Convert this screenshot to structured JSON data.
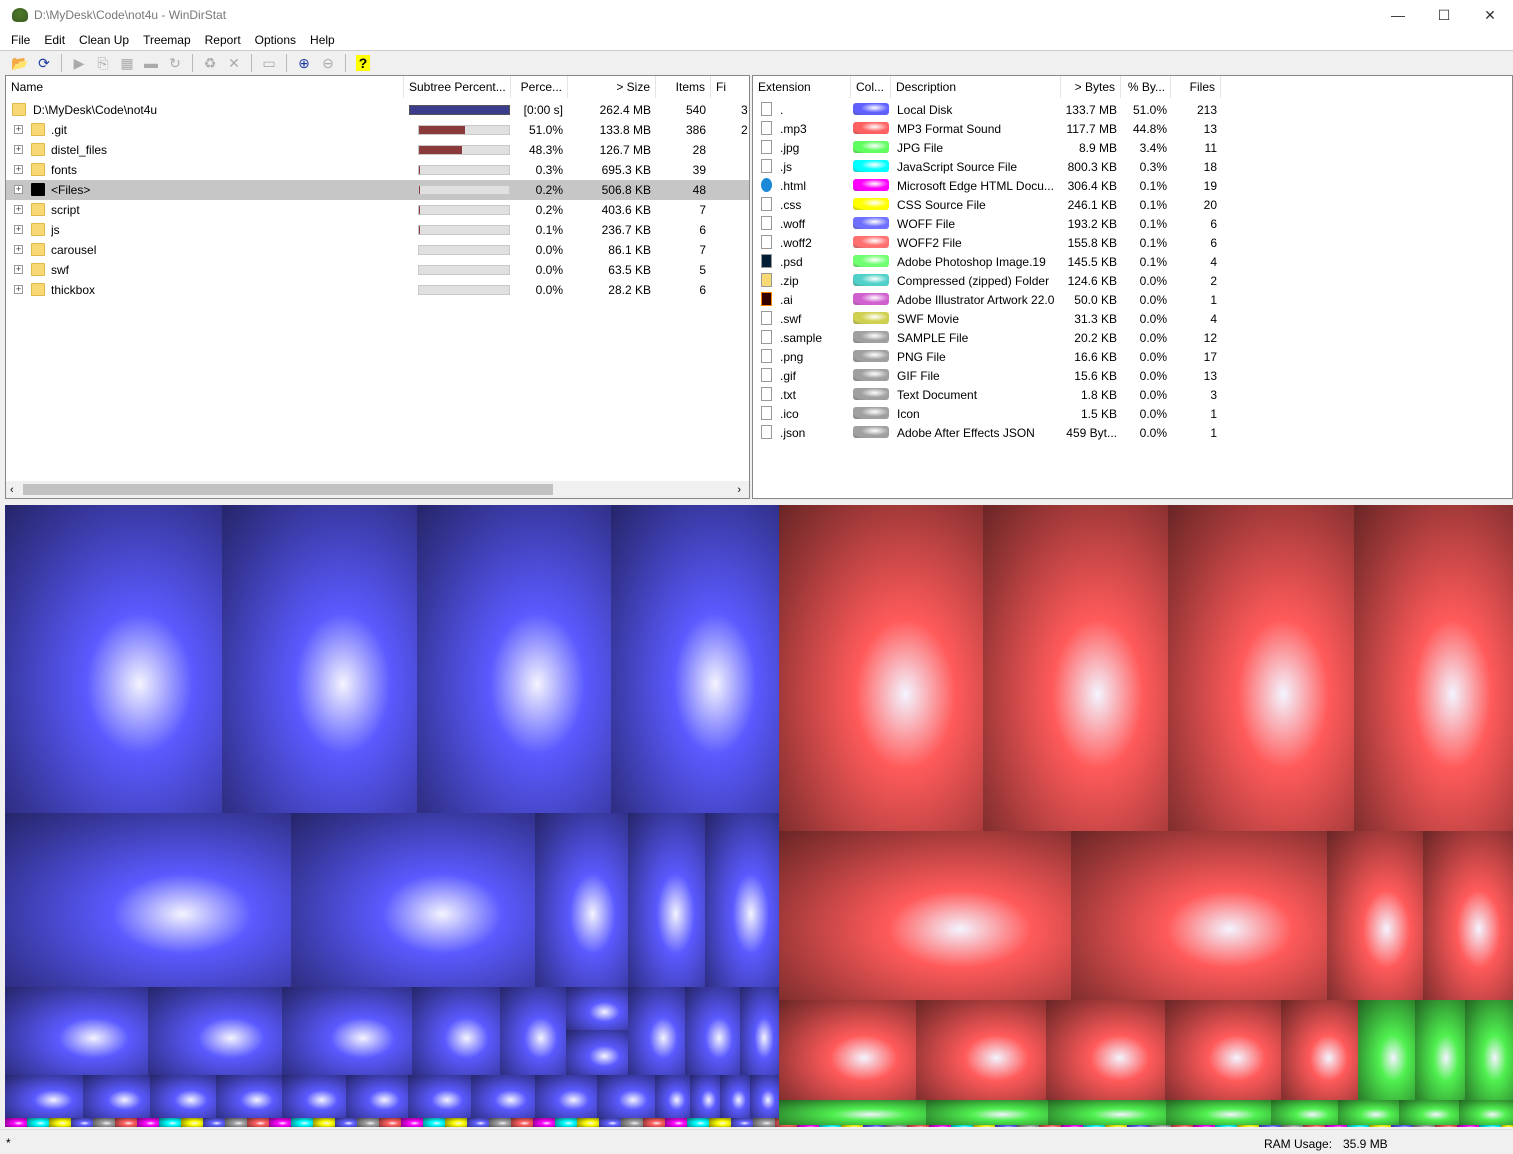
{
  "window": {
    "title": "D:\\MyDesk\\Code\\not4u - WinDirStat",
    "min": "—",
    "max": "☐",
    "close": "✕"
  },
  "menu": [
    "File",
    "Edit",
    "Clean Up",
    "Treemap",
    "Report",
    "Options",
    "Help"
  ],
  "toolbar": [
    {
      "icon": "open-icon",
      "glyph": "📂",
      "enabled": true
    },
    {
      "icon": "refresh-icon",
      "glyph": "⟳",
      "enabled": true
    },
    {
      "sep": true
    },
    {
      "icon": "play-icon",
      "glyph": "▶",
      "enabled": false
    },
    {
      "icon": "copy-icon",
      "glyph": "⎘",
      "enabled": false
    },
    {
      "icon": "explorer-icon",
      "glyph": "▦",
      "enabled": false
    },
    {
      "icon": "command-prompt-icon",
      "glyph": "▬",
      "enabled": false
    },
    {
      "icon": "refresh-selected-icon",
      "glyph": "↻",
      "enabled": false
    },
    {
      "sep": true
    },
    {
      "icon": "recycle-icon",
      "glyph": "♻",
      "enabled": false
    },
    {
      "icon": "delete-icon",
      "glyph": "✕",
      "enabled": false
    },
    {
      "sep": true
    },
    {
      "icon": "properties-folder-icon",
      "glyph": "▭",
      "enabled": false
    },
    {
      "sep": true
    },
    {
      "icon": "zoom-in-icon",
      "glyph": "⊕",
      "enabled": true
    },
    {
      "icon": "zoom-out-icon",
      "glyph": "⊖",
      "enabled": false
    },
    {
      "sep": true
    },
    {
      "icon": "help-icon",
      "glyph": "?",
      "enabled": true
    }
  ],
  "tree": {
    "columns": [
      "Name",
      "Subtree Percent...",
      "Perce...",
      "> Size",
      "Items",
      "Fi"
    ],
    "rows": [
      {
        "name": "D:\\MyDesk\\Code\\not4u",
        "pct": "[0:00 s]",
        "size": "262.4 MB",
        "items": "540",
        "files": "3",
        "fill": 100,
        "root": true
      },
      {
        "name": ".git",
        "pct": "51.0%",
        "size": "133.8 MB",
        "items": "386",
        "files": "2",
        "fill": 51.0
      },
      {
        "name": "distel_files",
        "pct": "48.3%",
        "size": "126.7 MB",
        "items": "28",
        "files": "",
        "fill": 48.3
      },
      {
        "name": "fonts",
        "pct": "0.3%",
        "size": "695.3 KB",
        "items": "39",
        "files": "",
        "fill": 0.3
      },
      {
        "name": "<Files>",
        "pct": "0.2%",
        "size": "506.8 KB",
        "items": "48",
        "files": "",
        "fill": 0.2,
        "selected": true,
        "filesNode": true
      },
      {
        "name": "script",
        "pct": "0.2%",
        "size": "403.6 KB",
        "items": "7",
        "files": "",
        "fill": 0.2
      },
      {
        "name": "js",
        "pct": "0.1%",
        "size": "236.7 KB",
        "items": "6",
        "files": "",
        "fill": 0.1
      },
      {
        "name": "carousel",
        "pct": "0.0%",
        "size": "86.1 KB",
        "items": "7",
        "files": "",
        "fill": 0
      },
      {
        "name": "swf",
        "pct": "0.0%",
        "size": "63.5 KB",
        "items": "5",
        "files": "",
        "fill": 0
      },
      {
        "name": "thickbox",
        "pct": "0.0%",
        "size": "28.2 KB",
        "items": "6",
        "files": "",
        "fill": 0
      }
    ]
  },
  "extensions": {
    "columns": [
      "Extension",
      "Col...",
      "Description",
      "> Bytes",
      "% By...",
      "Files"
    ],
    "rows": [
      {
        "ext": ".",
        "color": "#6060ff",
        "desc": "Local Disk",
        "bytes": "133.7 MB",
        "pct": "51.0%",
        "files": "213",
        "icon": "drive-icon"
      },
      {
        "ext": ".mp3",
        "color": "#ff6060",
        "desc": "MP3 Format Sound",
        "bytes": "117.7 MB",
        "pct": "44.8%",
        "files": "13",
        "icon": "audio-file-icon"
      },
      {
        "ext": ".jpg",
        "color": "#60ff60",
        "desc": "JPG File",
        "bytes": "8.9 MB",
        "pct": "3.4%",
        "files": "11",
        "icon": "image-file-icon"
      },
      {
        "ext": ".js",
        "color": "#00ffff",
        "desc": "JavaScript Source File",
        "bytes": "800.3 KB",
        "pct": "0.3%",
        "files": "18",
        "icon": "js-file-icon"
      },
      {
        "ext": ".html",
        "color": "#ff00ff",
        "desc": "Microsoft Edge HTML Docu...",
        "bytes": "306.4 KB",
        "pct": "0.1%",
        "files": "19",
        "icon": "edge-icon"
      },
      {
        "ext": ".css",
        "color": "#ffff00",
        "desc": "CSS Source File",
        "bytes": "246.1 KB",
        "pct": "0.1%",
        "files": "20",
        "icon": "css-file-icon"
      },
      {
        "ext": ".woff",
        "color": "#7070ff",
        "desc": "WOFF File",
        "bytes": "193.2 KB",
        "pct": "0.1%",
        "files": "6",
        "icon": "file-icon"
      },
      {
        "ext": ".woff2",
        "color": "#ff7070",
        "desc": "WOFF2 File",
        "bytes": "155.8 KB",
        "pct": "0.1%",
        "files": "6",
        "icon": "file-icon"
      },
      {
        "ext": ".psd",
        "color": "#70ff70",
        "desc": "Adobe Photoshop Image.19",
        "bytes": "145.5 KB",
        "pct": "0.1%",
        "files": "4",
        "icon": "photoshop-icon"
      },
      {
        "ext": ".zip",
        "color": "#50d0c8",
        "desc": "Compressed (zipped) Folder",
        "bytes": "124.6 KB",
        "pct": "0.0%",
        "files": "2",
        "icon": "zip-folder-icon"
      },
      {
        "ext": ".ai",
        "color": "#d060d0",
        "desc": "Adobe Illustrator Artwork 22.0",
        "bytes": "50.0 KB",
        "pct": "0.0%",
        "files": "1",
        "icon": "illustrator-icon"
      },
      {
        "ext": ".swf",
        "color": "#d0d050",
        "desc": "SWF Movie",
        "bytes": "31.3 KB",
        "pct": "0.0%",
        "files": "4",
        "icon": "swf-file-icon"
      },
      {
        "ext": ".sample",
        "color": "#a0a0a0",
        "desc": "SAMPLE File",
        "bytes": "20.2 KB",
        "pct": "0.0%",
        "files": "12",
        "icon": "file-icon"
      },
      {
        "ext": ".png",
        "color": "#a0a0a0",
        "desc": "PNG File",
        "bytes": "16.6 KB",
        "pct": "0.0%",
        "files": "17",
        "icon": "image-file-icon"
      },
      {
        "ext": ".gif",
        "color": "#a0a0a0",
        "desc": "GIF File",
        "bytes": "15.6 KB",
        "pct": "0.0%",
        "files": "13",
        "icon": "image-file-icon"
      },
      {
        "ext": ".txt",
        "color": "#a0a0a0",
        "desc": "Text Document",
        "bytes": "1.8 KB",
        "pct": "0.0%",
        "files": "3",
        "icon": "text-file-icon"
      },
      {
        "ext": ".ico",
        "color": "#a0a0a0",
        "desc": "Icon",
        "bytes": "1.5 KB",
        "pct": "0.0%",
        "files": "1",
        "icon": "file-icon"
      },
      {
        "ext": ".json",
        "color": "#a0a0a0",
        "desc": "Adobe After Effects JSON",
        "bytes": "459 Byt...",
        "pct": "0.0%",
        "files": "1",
        "icon": "json-file-icon"
      }
    ]
  },
  "treemap": {
    "colors": {
      "blue": "#5a5aff",
      "red": "#ff5a5a",
      "green": "#50f050"
    }
  },
  "status": {
    "left": "*",
    "ram_label": "RAM Usage:",
    "ram_value": "35.9 MB"
  }
}
